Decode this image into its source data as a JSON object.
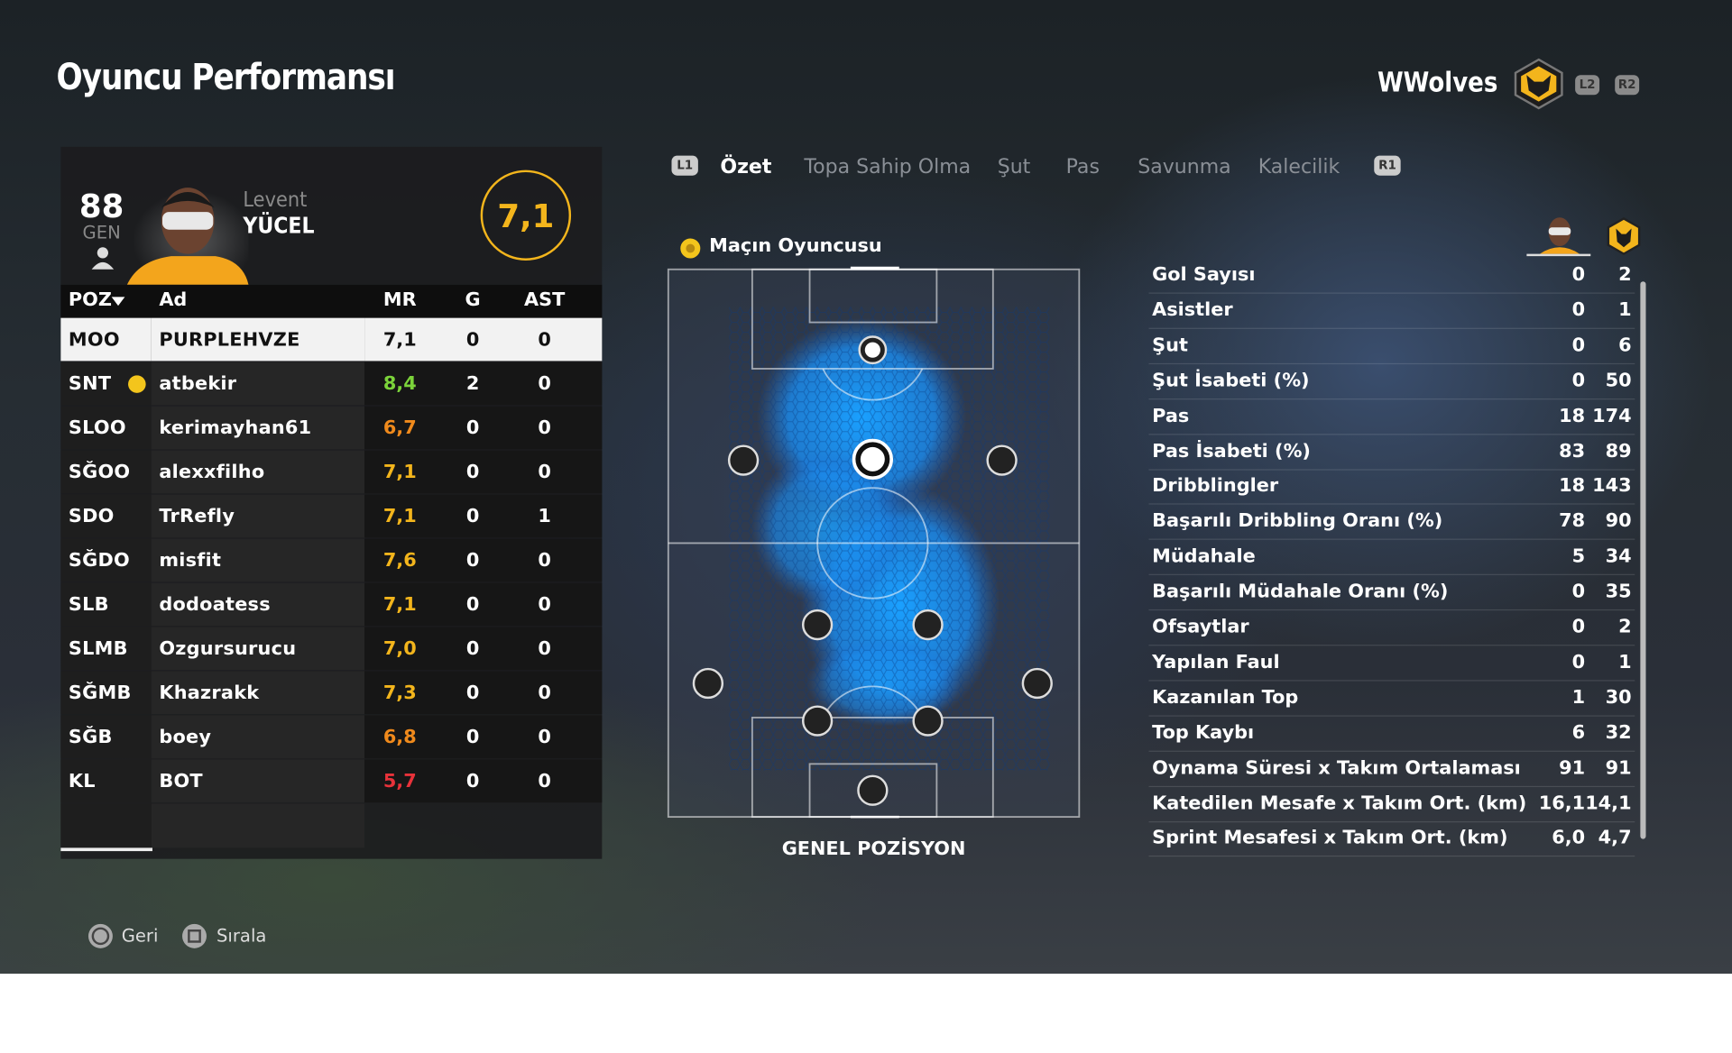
{
  "header": {
    "title": "Oyuncu Performansı",
    "team": "WWolves",
    "buttons": [
      "L2",
      "R2"
    ]
  },
  "player_card": {
    "overall": "88",
    "overall_label": "GEN",
    "first_name": "Levent",
    "last_name": "YÜCEL",
    "match_rating": "7,1"
  },
  "tabs": {
    "left_button": "L1",
    "right_button": "R1",
    "items": [
      "Özet",
      "Topa Sahip Olma",
      "Şut",
      "Pas",
      "Savunma",
      "Kalecilik"
    ],
    "active": 0
  },
  "table": {
    "columns": [
      "POZ",
      "Ad",
      "MR",
      "G",
      "AST"
    ],
    "rows": [
      {
        "pos": "MOO",
        "name": "PURPLEHVZE",
        "mr": "7,1",
        "g": "0",
        "ast": "0",
        "mr_color": "#111111"
      },
      {
        "pos": "SNT",
        "name": "atbekir",
        "mr": "8,4",
        "g": "2",
        "ast": "0",
        "mr_color": "#7bd33a"
      },
      {
        "pos": "SLOO",
        "name": "kerimayhan61",
        "mr": "6,7",
        "g": "0",
        "ast": "0",
        "mr_color": "#f08a1c"
      },
      {
        "pos": "SĞOO",
        "name": "alexxfilho",
        "mr": "7,1",
        "g": "0",
        "ast": "0",
        "mr_color": "#f3b51c"
      },
      {
        "pos": "SDO",
        "name": "TrRefly",
        "mr": "7,1",
        "g": "0",
        "ast": "1",
        "mr_color": "#f3b51c"
      },
      {
        "pos": "SĞDO",
        "name": "misfit",
        "mr": "7,6",
        "g": "0",
        "ast": "0",
        "mr_color": "#f3b51c"
      },
      {
        "pos": "SLB",
        "name": "dodoatess",
        "mr": "7,1",
        "g": "0",
        "ast": "0",
        "mr_color": "#f3b51c"
      },
      {
        "pos": "SLMB",
        "name": "Ozgursurucu",
        "mr": "7,0",
        "g": "0",
        "ast": "0",
        "mr_color": "#f3b51c"
      },
      {
        "pos": "SĞMB",
        "name": "Khazrakk",
        "mr": "7,3",
        "g": "0",
        "ast": "0",
        "mr_color": "#f3b51c"
      },
      {
        "pos": "SĞB",
        "name": "boey",
        "mr": "6,8",
        "g": "0",
        "ast": "0",
        "mr_color": "#f08a1c"
      },
      {
        "pos": "KL",
        "name": "BOT",
        "mr": "5,7",
        "g": "0",
        "ast": "0",
        "mr_color": "#e8323a"
      }
    ]
  },
  "pitch": {
    "badge": "Maçın Oyuncusu",
    "label": "GENEL POZİSYON"
  },
  "stats": [
    {
      "label": "Gol Sayısı",
      "player": "0",
      "team": "2"
    },
    {
      "label": "Asistler",
      "player": "0",
      "team": "1"
    },
    {
      "label": "Şut",
      "player": "0",
      "team": "6"
    },
    {
      "label": "Şut İsabeti (%)",
      "player": "0",
      "team": "50"
    },
    {
      "label": "Pas",
      "player": "18",
      "team": "174"
    },
    {
      "label": "Pas İsabeti (%)",
      "player": "83",
      "team": "89"
    },
    {
      "label": "Dribblingler",
      "player": "18",
      "team": "143"
    },
    {
      "label": "Başarılı Dribbling Oranı (%)",
      "player": "78",
      "team": "90"
    },
    {
      "label": "Müdahale",
      "player": "5",
      "team": "34"
    },
    {
      "label": "Başarılı Müdahale Oranı (%)",
      "player": "0",
      "team": "35"
    },
    {
      "label": "Ofsaytlar",
      "player": "0",
      "team": "2"
    },
    {
      "label": "Yapılan Faul",
      "player": "0",
      "team": "1"
    },
    {
      "label": "Kazanılan Top",
      "player": "1",
      "team": "30"
    },
    {
      "label": "Top Kaybı",
      "player": "6",
      "team": "32"
    },
    {
      "label": "Oynama Süresi x Takım Ortalaması",
      "player": "91",
      "team": "91"
    },
    {
      "label": "Katedilen Mesafe x Takım Ort. (km)",
      "player": "16,1",
      "team": "14,1"
    },
    {
      "label": "Sprint Mesafesi x Takım Ort. (km)",
      "player": "6,0",
      "team": "4,7"
    }
  ],
  "footer": [
    "Geri",
    "Sırala"
  ]
}
